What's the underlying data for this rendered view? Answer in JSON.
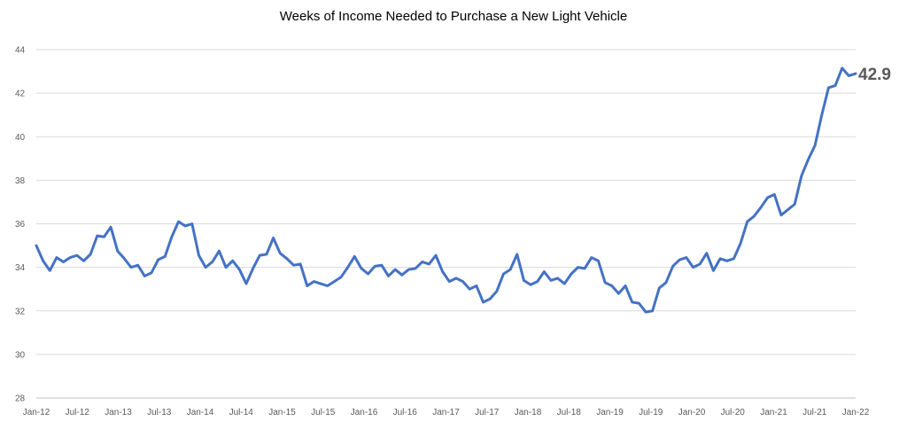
{
  "chart_data": {
    "type": "line",
    "title": "Weeks of Income Needed to Purchase a New Light Vehicle",
    "xlabel": "",
    "ylabel": "",
    "ylim": [
      28,
      44
    ],
    "y_ticks": [
      28,
      30,
      32,
      34,
      36,
      38,
      40,
      42,
      44
    ],
    "x_tick_labels": [
      "Jan-12",
      "Jul-12",
      "Jan-13",
      "Jul-13",
      "Jan-14",
      "Jul-14",
      "Jan-15",
      "Jul-15",
      "Jan-16",
      "Jul-16",
      "Jan-17",
      "Jul-17",
      "Jan-18",
      "Jul-18",
      "Jan-19",
      "Jul-19",
      "Jan-20",
      "Jul-20",
      "Jan-21",
      "Jul-21",
      "Jan-22"
    ],
    "grid": true,
    "legend": "none",
    "end_label": "42.9",
    "line_color": "#4472C4",
    "series": [
      {
        "values": [
          35.0,
          34.3,
          33.85,
          34.45,
          34.25,
          34.45,
          34.55,
          34.3,
          34.6,
          35.45,
          35.4,
          35.85,
          34.75,
          34.4,
          34.0,
          34.1,
          33.6,
          33.75,
          34.35,
          34.5,
          35.4,
          36.1,
          35.9,
          36.0,
          34.55,
          34.0,
          34.25,
          34.75,
          34.0,
          34.3,
          33.9,
          33.25,
          33.95,
          34.55,
          34.6,
          35.35,
          34.65,
          34.4,
          34.1,
          34.15,
          33.15,
          33.35,
          33.25,
          33.15,
          33.35,
          33.55,
          34.0,
          34.5,
          33.95,
          33.7,
          34.05,
          34.1,
          33.6,
          33.9,
          33.65,
          33.9,
          33.95,
          34.25,
          34.15,
          34.55,
          33.8,
          33.35,
          33.5,
          33.35,
          33.0,
          33.15,
          32.4,
          32.55,
          32.9,
          33.7,
          33.9,
          34.6,
          33.4,
          33.2,
          33.35,
          33.8,
          33.4,
          33.5,
          33.25,
          33.7,
          34.0,
          33.95,
          34.45,
          34.3,
          33.3,
          33.15,
          32.8,
          33.15,
          32.4,
          32.35,
          31.95,
          32.0,
          33.05,
          33.3,
          34.05,
          34.35,
          34.45,
          34.0,
          34.15,
          34.65,
          33.85,
          34.4,
          34.3,
          34.4,
          35.1,
          36.1,
          36.35,
          36.75,
          37.2,
          37.35,
          36.4,
          36.65,
          36.9,
          38.2,
          38.95,
          39.6,
          41.0,
          42.25,
          42.35,
          43.15,
          42.8,
          42.9
        ]
      }
    ]
  }
}
